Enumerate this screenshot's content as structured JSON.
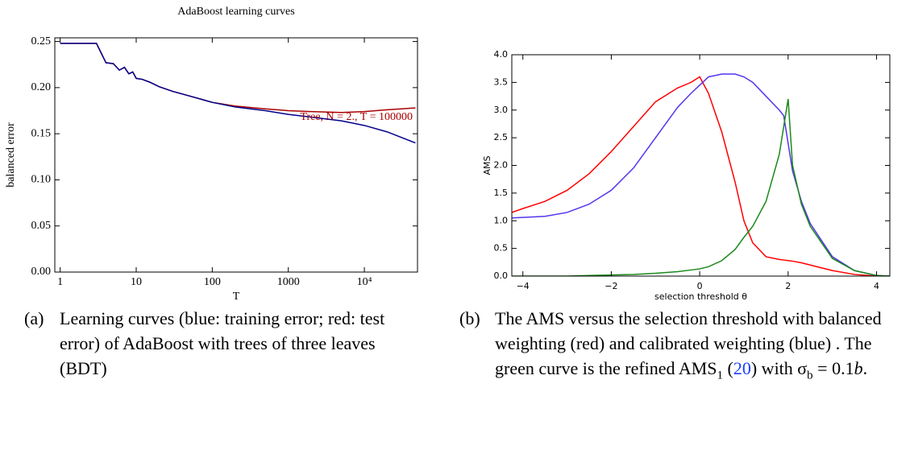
{
  "chart_data": [
    {
      "type": "line",
      "title": "AdaBoost learning curves",
      "xlabel": "T",
      "ylabel": "balanced error",
      "annotation": "Tree, N = 2., T = 100000",
      "xscale": "log",
      "xlim": [
        0.85,
        50000
      ],
      "xticks": [
        1,
        10,
        100,
        1000,
        {
          "value": 10000,
          "label": "10⁴"
        }
      ],
      "ylim": [
        0,
        0.254
      ],
      "yticks": [
        {
          "value": 0,
          "label": "0.00"
        },
        {
          "value": 0.05,
          "label": "0.05"
        },
        {
          "value": 0.1,
          "label": "0.10"
        },
        {
          "value": 0.15,
          "label": "0.15"
        },
        {
          "value": 0.2,
          "label": "0.20"
        },
        {
          "value": 0.25,
          "label": "0.25"
        }
      ],
      "grid": false,
      "x": [
        1,
        2,
        3,
        4,
        5,
        6,
        7,
        8,
        9,
        10,
        12,
        15,
        20,
        30,
        50,
        100,
        200,
        500,
        1000,
        2000,
        5000,
        10000,
        20000,
        47000
      ],
      "series": [
        {
          "color": "#aa0000",
          "values": [
            0.248,
            0.248,
            0.248,
            0.227,
            0.226,
            0.219,
            0.222,
            0.215,
            0.217,
            0.21,
            0.209,
            0.206,
            0.201,
            0.196,
            0.191,
            0.184,
            0.18,
            0.177,
            0.175,
            0.174,
            0.173,
            0.174,
            0.176,
            0.178
          ]
        },
        {
          "color": "#00008b",
          "values": [
            0.248,
            0.248,
            0.248,
            0.227,
            0.226,
            0.219,
            0.222,
            0.215,
            0.217,
            0.21,
            0.209,
            0.206,
            0.201,
            0.196,
            0.191,
            0.184,
            0.179,
            0.175,
            0.171,
            0.168,
            0.164,
            0.159,
            0.152,
            0.14
          ]
        }
      ]
    },
    {
      "type": "line",
      "xlabel": "selection threshold θ",
      "ylabel": "AMS",
      "xscale": "linear",
      "xlim": [
        -4.25,
        4.3
      ],
      "xticks": [
        {
          "value": -4,
          "label": "−4"
        },
        {
          "value": -2,
          "label": "−2"
        },
        0,
        2,
        4
      ],
      "ylim": [
        0,
        4
      ],
      "yticks": [
        {
          "value": 0,
          "label": "0.0"
        },
        0.5,
        {
          "value": 1,
          "label": "1.0"
        },
        1.5,
        {
          "value": 2,
          "label": "2.0"
        },
        2.5,
        {
          "value": 3,
          "label": "3.0"
        },
        3.5,
        {
          "value": 4,
          "label": "4.0"
        }
      ],
      "grid": false,
      "x": [
        -4.25,
        -4,
        -3.5,
        -3,
        -2.5,
        -2,
        -1.5,
        -1,
        -0.5,
        -0.2,
        0,
        0.2,
        0.5,
        0.8,
        1,
        1.2,
        1.5,
        1.8,
        1.9,
        2,
        2.1,
        2.3,
        2.5,
        3,
        3.5,
        4,
        4.3
      ],
      "series": [
        {
          "color": "#ff0000",
          "values": [
            1.15,
            1.22,
            1.35,
            1.55,
            1.85,
            2.25,
            2.7,
            3.15,
            3.4,
            3.5,
            3.6,
            3.3,
            2.6,
            1.7,
            1.0,
            0.6,
            0.35,
            0.3,
            0.29,
            0.28,
            0.27,
            0.24,
            0.2,
            0.1,
            0.03,
            0.0,
            0.0
          ]
        },
        {
          "color": "#5533ee",
          "values": [
            1.05,
            1.06,
            1.08,
            1.15,
            1.3,
            1.55,
            1.95,
            2.5,
            3.05,
            3.3,
            3.45,
            3.6,
            3.65,
            3.65,
            3.6,
            3.5,
            3.25,
            3.0,
            2.9,
            2.4,
            1.9,
            1.35,
            0.95,
            0.35,
            0.1,
            0.01,
            0.0
          ]
        },
        {
          "color": "#1a8a1a",
          "values": [
            0,
            0,
            0,
            0,
            0.01,
            0.02,
            0.03,
            0.05,
            0.08,
            0.11,
            0.13,
            0.17,
            0.28,
            0.48,
            0.7,
            0.9,
            1.35,
            2.2,
            2.7,
            3.2,
            2.0,
            1.3,
            0.9,
            0.32,
            0.1,
            0.01,
            0.0
          ]
        }
      ]
    }
  ],
  "captions": [
    {
      "label": "(a)",
      "parts": [
        "Learning curves (blue: training error; red: test error) of AdaBoost with trees of three leaves (BDT)"
      ]
    },
    {
      "label": "(b)",
      "parts": [
        "The AMS versus the selection threshold with balanced weighting (red) and calibrated weighting (blue) . The green curve is the refined AMS",
        "1",
        " (",
        "20",
        ") with σ",
        "b",
        " = 0.1",
        "b",
        "."
      ]
    }
  ]
}
